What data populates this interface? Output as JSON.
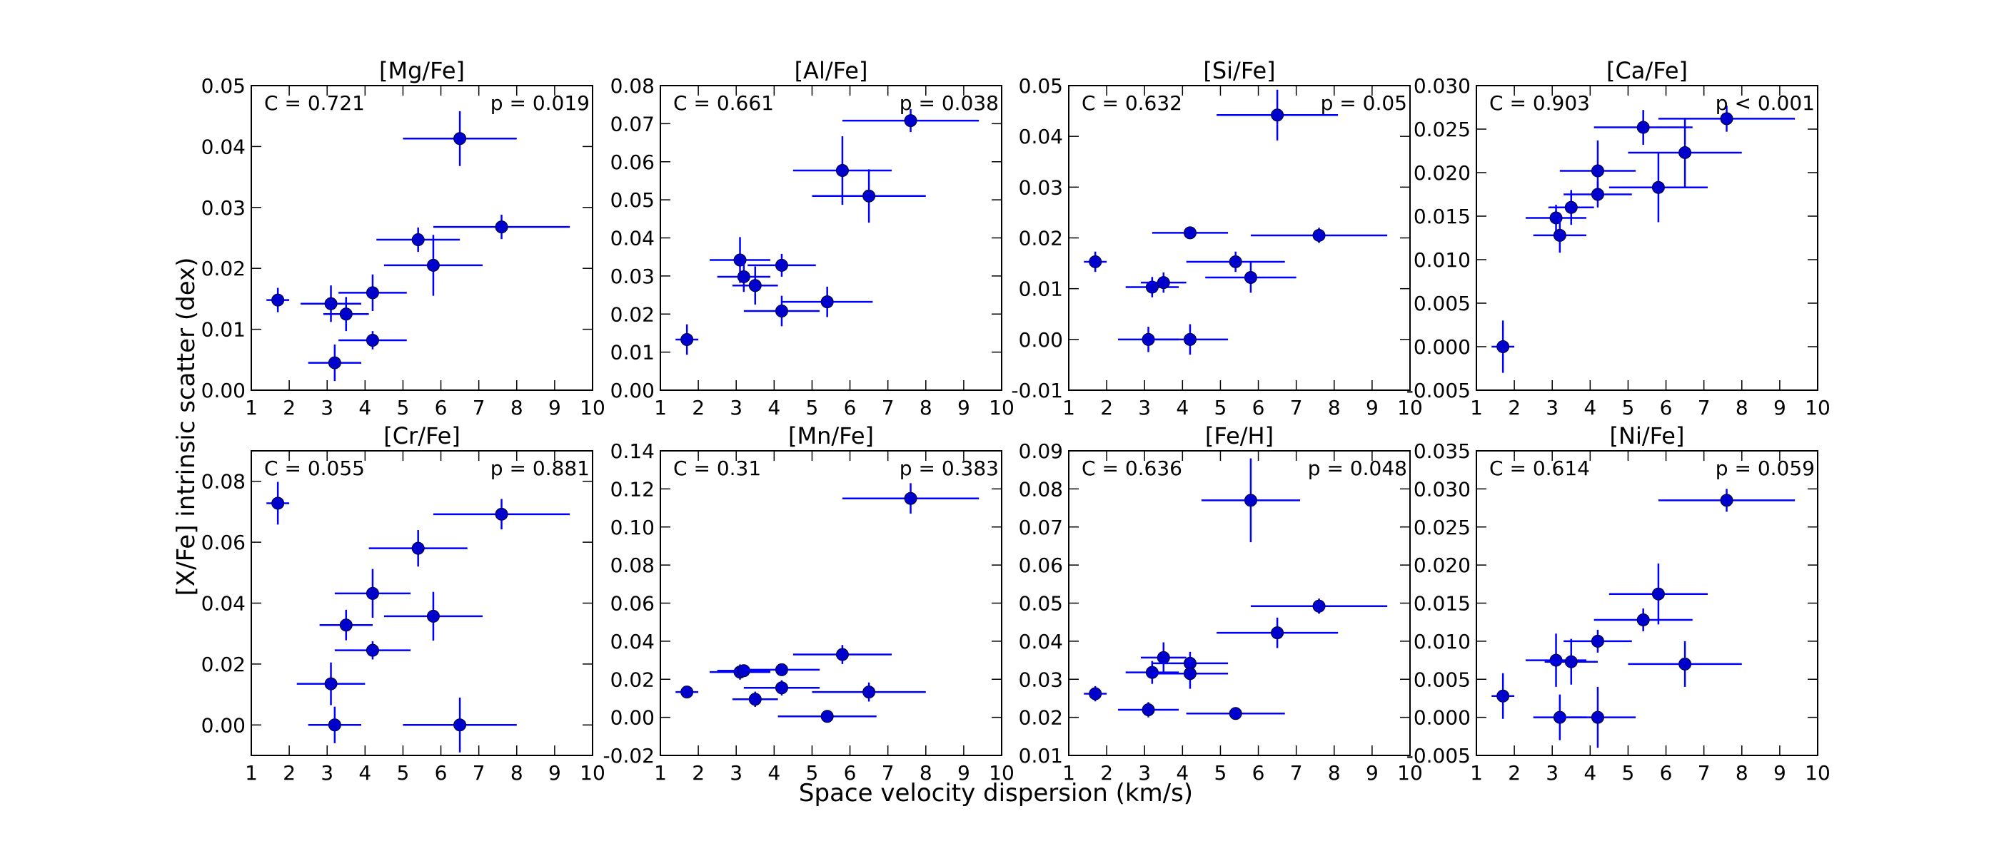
{
  "figure": {
    "ylabel": "[X/Fe] intrinsic scatter (dex)",
    "xlabel": "Space velocity dispersion (km/s)"
  },
  "chart_data": [
    {
      "type": "scatter",
      "title": "[Mg/Fe]",
      "corr_label": "C = 0.721",
      "p_label": "p = 0.019",
      "xlim": [
        1,
        10
      ],
      "ylim": [
        0,
        0.05
      ],
      "xticks": [
        1,
        2,
        3,
        4,
        5,
        6,
        7,
        8,
        9,
        10
      ],
      "yticks": [
        0.0,
        0.01,
        0.02,
        0.03,
        0.04,
        0.05
      ],
      "ydecimals": 2,
      "points": [
        {
          "x": 1.7,
          "y": 0.0148,
          "xerr": 0.3,
          "yerr": 0.002
        },
        {
          "x": 3.1,
          "y": 0.0142,
          "xerr": 0.8,
          "yerr": 0.003
        },
        {
          "x": 3.5,
          "y": 0.0125,
          "xerr": 0.6,
          "yerr": 0.0028
        },
        {
          "x": 3.2,
          "y": 0.0045,
          "xerr": 0.7,
          "yerr": 0.003
        },
        {
          "x": 4.2,
          "y": 0.016,
          "xerr": 0.9,
          "yerr": 0.003
        },
        {
          "x": 4.2,
          "y": 0.0082,
          "xerr": 0.9,
          "yerr": 0.0015
        },
        {
          "x": 5.4,
          "y": 0.0247,
          "xerr": 1.1,
          "yerr": 0.002
        },
        {
          "x": 5.8,
          "y": 0.0205,
          "xerr": 1.3,
          "yerr": 0.005
        },
        {
          "x": 6.5,
          "y": 0.0413,
          "xerr": 1.5,
          "yerr": 0.0045
        },
        {
          "x": 7.6,
          "y": 0.0268,
          "xerr": 1.8,
          "yerr": 0.002
        }
      ]
    },
    {
      "type": "scatter",
      "title": "[Al/Fe]",
      "corr_label": "C = 0.661",
      "p_label": "p = 0.038",
      "xlim": [
        1,
        10
      ],
      "ylim": [
        0,
        0.08
      ],
      "xticks": [
        1,
        2,
        3,
        4,
        5,
        6,
        7,
        8,
        9,
        10
      ],
      "yticks": [
        0.0,
        0.01,
        0.02,
        0.03,
        0.04,
        0.05,
        0.06,
        0.07,
        0.08
      ],
      "ydecimals": 2,
      "points": [
        {
          "x": 1.7,
          "y": 0.0133,
          "xerr": 0.3,
          "yerr": 0.004
        },
        {
          "x": 3.1,
          "y": 0.0342,
          "xerr": 0.8,
          "yerr": 0.006
        },
        {
          "x": 3.2,
          "y": 0.0298,
          "xerr": 0.7,
          "yerr": 0.004
        },
        {
          "x": 3.5,
          "y": 0.0275,
          "xerr": 0.6,
          "yerr": 0.005
        },
        {
          "x": 4.2,
          "y": 0.0328,
          "xerr": 0.9,
          "yerr": 0.003
        },
        {
          "x": 4.2,
          "y": 0.0208,
          "xerr": 1.0,
          "yerr": 0.004
        },
        {
          "x": 5.4,
          "y": 0.0232,
          "xerr": 1.2,
          "yerr": 0.004
        },
        {
          "x": 5.8,
          "y": 0.0577,
          "xerr": 1.3,
          "yerr": 0.009
        },
        {
          "x": 6.5,
          "y": 0.051,
          "xerr": 1.5,
          "yerr": 0.007
        },
        {
          "x": 7.6,
          "y": 0.0708,
          "xerr": 1.8,
          "yerr": 0.003
        }
      ]
    },
    {
      "type": "scatter",
      "title": "[Si/Fe]",
      "corr_label": "C = 0.632",
      "p_label": "p = 0.05",
      "xlim": [
        1,
        10
      ],
      "ylim": [
        -0.01,
        0.05
      ],
      "xticks": [
        1,
        2,
        3,
        4,
        5,
        6,
        7,
        8,
        9,
        10
      ],
      "yticks": [
        -0.01,
        0.0,
        0.01,
        0.02,
        0.03,
        0.04,
        0.05
      ],
      "ydecimals": 2,
      "points": [
        {
          "x": 1.7,
          "y": 0.0153,
          "xerr": 0.3,
          "yerr": 0.002
        },
        {
          "x": 3.2,
          "y": 0.0103,
          "xerr": 0.7,
          "yerr": 0.002
        },
        {
          "x": 3.5,
          "y": 0.0112,
          "xerr": 0.6,
          "yerr": 0.002
        },
        {
          "x": 3.1,
          "y": 0.0,
          "xerr": 0.8,
          "yerr": 0.0025
        },
        {
          "x": 4.2,
          "y": 0.021,
          "xerr": 1.0,
          "yerr": 0.001
        },
        {
          "x": 4.2,
          "y": 0.0,
          "xerr": 1.0,
          "yerr": 0.003
        },
        {
          "x": 5.4,
          "y": 0.0153,
          "xerr": 1.3,
          "yerr": 0.002
        },
        {
          "x": 5.8,
          "y": 0.0122,
          "xerr": 1.2,
          "yerr": 0.003
        },
        {
          "x": 6.5,
          "y": 0.0442,
          "xerr": 1.6,
          "yerr": 0.005
        },
        {
          "x": 7.6,
          "y": 0.0205,
          "xerr": 1.8,
          "yerr": 0.0015
        }
      ]
    },
    {
      "type": "scatter",
      "title": "[Ca/Fe]",
      "corr_label": "C = 0.903",
      "p_label": "p < 0.001",
      "xlim": [
        1,
        10
      ],
      "ylim": [
        -0.005,
        0.03
      ],
      "xticks": [
        1,
        2,
        3,
        4,
        5,
        6,
        7,
        8,
        9,
        10
      ],
      "yticks": [
        -0.005,
        0.0,
        0.005,
        0.01,
        0.015,
        0.02,
        0.025,
        0.03
      ],
      "ydecimals": 3,
      "points": [
        {
          "x": 1.7,
          "y": 0.0,
          "xerr": 0.3,
          "yerr": 0.003
        },
        {
          "x": 3.1,
          "y": 0.0148,
          "xerr": 0.8,
          "yerr": 0.0015
        },
        {
          "x": 3.2,
          "y": 0.0128,
          "xerr": 0.7,
          "yerr": 0.002
        },
        {
          "x": 3.5,
          "y": 0.016,
          "xerr": 0.6,
          "yerr": 0.002
        },
        {
          "x": 4.2,
          "y": 0.0202,
          "xerr": 1.0,
          "yerr": 0.0035
        },
        {
          "x": 4.2,
          "y": 0.0175,
          "xerr": 0.9,
          "yerr": 0.0015
        },
        {
          "x": 5.4,
          "y": 0.0252,
          "xerr": 1.3,
          "yerr": 0.002
        },
        {
          "x": 5.8,
          "y": 0.0183,
          "xerr": 1.3,
          "yerr": 0.004
        },
        {
          "x": 6.5,
          "y": 0.0223,
          "xerr": 1.5,
          "yerr": 0.004
        },
        {
          "x": 7.6,
          "y": 0.0262,
          "xerr": 1.8,
          "yerr": 0.0015
        }
      ]
    },
    {
      "type": "scatter",
      "title": "[Cr/Fe]",
      "corr_label": "C = 0.055",
      "p_label": "p = 0.881",
      "xlim": [
        1,
        10
      ],
      "ylim": [
        -0.01,
        0.09
      ],
      "xticks": [
        1,
        2,
        3,
        4,
        5,
        6,
        7,
        8,
        9,
        10
      ],
      "yticks": [
        0.0,
        0.02,
        0.04,
        0.06,
        0.08
      ],
      "ydecimals": 2,
      "points": [
        {
          "x": 1.7,
          "y": 0.0728,
          "xerr": 0.3,
          "yerr": 0.007
        },
        {
          "x": 3.1,
          "y": 0.0135,
          "xerr": 0.9,
          "yerr": 0.007
        },
        {
          "x": 3.5,
          "y": 0.0328,
          "xerr": 0.7,
          "yerr": 0.005
        },
        {
          "x": 3.2,
          "y": 0.0,
          "xerr": 0.7,
          "yerr": 0.006
        },
        {
          "x": 4.2,
          "y": 0.0432,
          "xerr": 1.0,
          "yerr": 0.008
        },
        {
          "x": 4.2,
          "y": 0.0245,
          "xerr": 1.0,
          "yerr": 0.003
        },
        {
          "x": 5.4,
          "y": 0.058,
          "xerr": 1.3,
          "yerr": 0.006
        },
        {
          "x": 5.8,
          "y": 0.0357,
          "xerr": 1.3,
          "yerr": 0.008
        },
        {
          "x": 6.5,
          "y": 0.0,
          "xerr": 1.5,
          "yerr": 0.009
        },
        {
          "x": 7.6,
          "y": 0.0692,
          "xerr": 1.8,
          "yerr": 0.005
        }
      ]
    },
    {
      "type": "scatter",
      "title": "[Mn/Fe]",
      "corr_label": "C = 0.31",
      "p_label": "p = 0.383",
      "xlim": [
        1,
        10
      ],
      "ylim": [
        -0.02,
        0.14
      ],
      "xticks": [
        1,
        2,
        3,
        4,
        5,
        6,
        7,
        8,
        9,
        10
      ],
      "yticks": [
        -0.02,
        0.0,
        0.02,
        0.04,
        0.06,
        0.08,
        0.1,
        0.12,
        0.14
      ],
      "ydecimals": 2,
      "points": [
        {
          "x": 1.7,
          "y": 0.0133,
          "xerr": 0.3,
          "yerr": 0.002
        },
        {
          "x": 3.1,
          "y": 0.0238,
          "xerr": 0.8,
          "yerr": 0.004
        },
        {
          "x": 3.2,
          "y": 0.0245,
          "xerr": 0.7,
          "yerr": 0.003
        },
        {
          "x": 3.5,
          "y": 0.0095,
          "xerr": 0.6,
          "yerr": 0.004
        },
        {
          "x": 4.2,
          "y": 0.025,
          "xerr": 1.0,
          "yerr": 0.002
        },
        {
          "x": 4.2,
          "y": 0.0155,
          "xerr": 1.0,
          "yerr": 0.004
        },
        {
          "x": 5.4,
          "y": 0.0005,
          "xerr": 1.3,
          "yerr": 0.002
        },
        {
          "x": 5.8,
          "y": 0.033,
          "xerr": 1.3,
          "yerr": 0.005
        },
        {
          "x": 6.5,
          "y": 0.0133,
          "xerr": 1.5,
          "yerr": 0.005
        },
        {
          "x": 7.6,
          "y": 0.115,
          "xerr": 1.8,
          "yerr": 0.008
        }
      ]
    },
    {
      "type": "scatter",
      "title": "[Fe/H]",
      "corr_label": "C = 0.636",
      "p_label": "p = 0.048",
      "xlim": [
        1,
        10
      ],
      "ylim": [
        0.01,
        0.09
      ],
      "xticks": [
        1,
        2,
        3,
        4,
        5,
        6,
        7,
        8,
        9,
        10
      ],
      "yticks": [
        0.01,
        0.02,
        0.03,
        0.04,
        0.05,
        0.06,
        0.07,
        0.08,
        0.09
      ],
      "ydecimals": 2,
      "points": [
        {
          "x": 1.7,
          "y": 0.0262,
          "xerr": 0.3,
          "yerr": 0.002
        },
        {
          "x": 3.1,
          "y": 0.022,
          "xerr": 0.8,
          "yerr": 0.002
        },
        {
          "x": 3.2,
          "y": 0.0318,
          "xerr": 0.7,
          "yerr": 0.003
        },
        {
          "x": 3.5,
          "y": 0.0357,
          "xerr": 0.6,
          "yerr": 0.004
        },
        {
          "x": 4.2,
          "y": 0.0342,
          "xerr": 1.0,
          "yerr": 0.003
        },
        {
          "x": 4.2,
          "y": 0.0315,
          "xerr": 1.0,
          "yerr": 0.004
        },
        {
          "x": 5.4,
          "y": 0.021,
          "xerr": 1.3,
          "yerr": 0.0015
        },
        {
          "x": 5.8,
          "y": 0.077,
          "xerr": 1.3,
          "yerr": 0.011
        },
        {
          "x": 6.5,
          "y": 0.0422,
          "xerr": 1.6,
          "yerr": 0.004
        },
        {
          "x": 7.6,
          "y": 0.0492,
          "xerr": 1.8,
          "yerr": 0.002
        }
      ]
    },
    {
      "type": "scatter",
      "title": "[Ni/Fe]",
      "corr_label": "C = 0.614",
      "p_label": "p = 0.059",
      "xlim": [
        1,
        10
      ],
      "ylim": [
        -0.005,
        0.035
      ],
      "xticks": [
        1,
        2,
        3,
        4,
        5,
        6,
        7,
        8,
        9,
        10
      ],
      "yticks": [
        -0.005,
        0.0,
        0.005,
        0.01,
        0.015,
        0.02,
        0.025,
        0.03,
        0.035
      ],
      "ydecimals": 3,
      "points": [
        {
          "x": 1.7,
          "y": 0.0028,
          "xerr": 0.3,
          "yerr": 0.003
        },
        {
          "x": 3.1,
          "y": 0.0075,
          "xerr": 0.8,
          "yerr": 0.0035
        },
        {
          "x": 3.5,
          "y": 0.0073,
          "xerr": 0.7,
          "yerr": 0.003
        },
        {
          "x": 3.2,
          "y": 0.0,
          "xerr": 0.7,
          "yerr": 0.003
        },
        {
          "x": 4.2,
          "y": 0.01,
          "xerr": 0.9,
          "yerr": 0.0015
        },
        {
          "x": 4.2,
          "y": 0.0,
          "xerr": 1.0,
          "yerr": 0.004
        },
        {
          "x": 5.4,
          "y": 0.0128,
          "xerr": 1.3,
          "yerr": 0.0015
        },
        {
          "x": 5.8,
          "y": 0.0162,
          "xerr": 1.3,
          "yerr": 0.004
        },
        {
          "x": 6.5,
          "y": 0.007,
          "xerr": 1.5,
          "yerr": 0.003
        },
        {
          "x": 7.6,
          "y": 0.0285,
          "xerr": 1.8,
          "yerr": 0.0015
        }
      ]
    }
  ],
  "style": {
    "marker_color": "#0000cc",
    "error_color": "#0000ff",
    "axis_color": "#000000"
  }
}
